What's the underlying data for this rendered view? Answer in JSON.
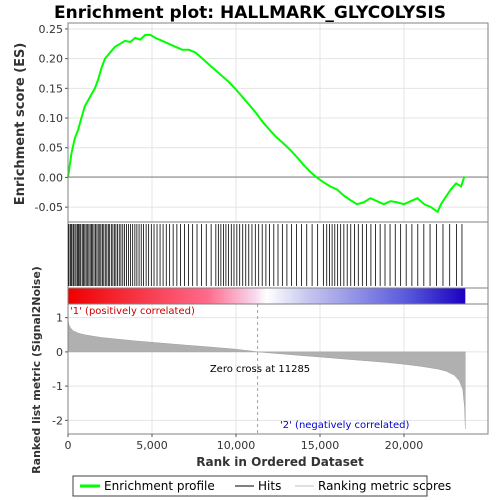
{
  "chart_data": {
    "type": "line",
    "title": "Enrichment plot: HALLMARK_GLYCOLYSIS",
    "es_panel": {
      "ylabel": "Enrichment score (ES)",
      "ylim": [
        -0.075,
        0.26
      ],
      "yticks": [
        -0.05,
        0.0,
        0.05,
        0.1,
        0.15,
        0.2,
        0.25
      ],
      "ytick_labels": [
        "-0.05",
        "0.00",
        "0.05",
        "0.10",
        "0.15",
        "0.20",
        "0.25"
      ],
      "grid": true,
      "zero_line": true,
      "series": [
        {
          "name": "Enrichment profile",
          "color": "#00ff00",
          "x": [
            0,
            200,
            400,
            600,
            800,
            1000,
            1200,
            1400,
            1600,
            1800,
            2000,
            2200,
            2500,
            2800,
            3100,
            3400,
            3700,
            4000,
            4300,
            4600,
            4900,
            5200,
            5600,
            6000,
            6400,
            6800,
            7200,
            7600,
            8000,
            8400,
            8800,
            9200,
            9600,
            10000,
            10400,
            10800,
            11200,
            11600,
            12000,
            12400,
            12800,
            13200,
            13600,
            14000,
            14400,
            14800,
            15200,
            15600,
            16000,
            16400,
            16800,
            17200,
            17600,
            18000,
            18400,
            18800,
            19200,
            19600,
            20000,
            20400,
            20800,
            21200,
            21600,
            22000,
            22200,
            22500,
            22800,
            23100,
            23400,
            23600
          ],
          "y": [
            0.0,
            0.04,
            0.065,
            0.08,
            0.1,
            0.12,
            0.13,
            0.14,
            0.15,
            0.165,
            0.185,
            0.2,
            0.21,
            0.22,
            0.225,
            0.23,
            0.228,
            0.235,
            0.232,
            0.24,
            0.24,
            0.235,
            0.23,
            0.225,
            0.22,
            0.215,
            0.215,
            0.21,
            0.2,
            0.19,
            0.18,
            0.17,
            0.16,
            0.148,
            0.135,
            0.122,
            0.108,
            0.093,
            0.08,
            0.068,
            0.058,
            0.047,
            0.035,
            0.022,
            0.01,
            0.0,
            -0.008,
            -0.015,
            -0.02,
            -0.03,
            -0.038,
            -0.045,
            -0.042,
            -0.035,
            -0.04,
            -0.045,
            -0.04,
            -0.042,
            -0.045,
            -0.04,
            -0.035,
            -0.045,
            -0.05,
            -0.058,
            -0.045,
            -0.032,
            -0.02,
            -0.01,
            -0.015,
            0.002
          ]
        }
      ]
    },
    "hits_panel": {
      "legend_label": "Hits",
      "hit_positions": [
        30,
        120,
        180,
        240,
        330,
        410,
        480,
        560,
        620,
        700,
        760,
        850,
        920,
        1000,
        1080,
        1150,
        1240,
        1320,
        1400,
        1470,
        1550,
        1640,
        1720,
        1800,
        1890,
        1960,
        2050,
        2130,
        2220,
        2310,
        2400,
        2480,
        2580,
        2670,
        2760,
        2850,
        2950,
        3050,
        3150,
        3260,
        3370,
        3480,
        3600,
        3720,
        3850,
        3980,
        4100,
        4230,
        4360,
        4500,
        4650,
        4800,
        4960,
        5120,
        5300,
        5480,
        5660,
        5850,
        6050,
        6260,
        6480,
        6700,
        6930,
        7170,
        7420,
        7680,
        7950,
        8230,
        8520,
        8800,
        8950,
        9100,
        9250,
        9400,
        9560,
        9720,
        9880,
        10050,
        10220,
        10400,
        10580,
        10760,
        10950,
        11150,
        11350,
        11560,
        11780,
        12000,
        12250,
        12500,
        12760,
        13030,
        13310,
        13600,
        13900,
        14210,
        14530,
        14860,
        15200,
        15400,
        15560,
        15720,
        15880,
        16050,
        16230,
        16420,
        16620,
        16830,
        17050,
        17280,
        17520,
        17770,
        18030,
        18300,
        18580,
        18870,
        19170,
        19480,
        19800,
        20130,
        20470,
        20820,
        21180,
        21550,
        21930,
        22320,
        22720,
        23120,
        23450
      ]
    },
    "rank_bar": {
      "colors": [
        "#ff0000",
        "#ffffff",
        "#0000ff"
      ],
      "positive_label": "'1' (positively correlated)",
      "negative_label": "'2' (negatively correlated)"
    },
    "metric_panel": {
      "ylabel": "Ranked list metric (Signal2Noise)",
      "ylim": [
        -2.4,
        1.4
      ],
      "yticks": [
        -2,
        -1,
        0,
        1
      ],
      "ytick_labels": [
        "-2",
        "-1",
        "0",
        "1"
      ],
      "fill_color": "#b0b0b0",
      "zero_cross_label": "Zero cross at 11285",
      "zero_cross": 11285,
      "x": [
        0,
        50,
        150,
        300,
        600,
        1000,
        1500,
        2000,
        3000,
        4000,
        5000,
        6000,
        7000,
        8000,
        9000,
        10000,
        11000,
        11285,
        12000,
        13000,
        14000,
        15000,
        16000,
        17000,
        18000,
        19000,
        20000,
        21000,
        22000,
        22500,
        23000,
        23300,
        23500,
        23600,
        23650
      ],
      "y": [
        0.95,
        0.8,
        0.7,
        0.62,
        0.55,
        0.5,
        0.46,
        0.42,
        0.37,
        0.32,
        0.28,
        0.24,
        0.2,
        0.16,
        0.12,
        0.08,
        0.02,
        0.0,
        -0.03,
        -0.07,
        -0.11,
        -0.15,
        -0.19,
        -0.23,
        -0.27,
        -0.31,
        -0.36,
        -0.42,
        -0.5,
        -0.56,
        -0.68,
        -0.85,
        -1.1,
        -1.6,
        -2.25
      ]
    },
    "x_axis": {
      "label": "Rank in Ordered Dataset",
      "xlim": [
        0,
        25000
      ],
      "ticks": [
        0,
        5000,
        10000,
        15000,
        20000
      ],
      "tick_labels": [
        "0",
        "5,000",
        "10,000",
        "15,000",
        "20,000"
      ]
    },
    "legend": {
      "items": [
        {
          "label": "Enrichment profile",
          "color": "#00ff00",
          "kind": "thick-line"
        },
        {
          "label": "Hits",
          "color": "#000000",
          "kind": "line"
        },
        {
          "label": "Ranking metric scores",
          "color": "#c0c0c0",
          "kind": "line"
        }
      ]
    }
  }
}
